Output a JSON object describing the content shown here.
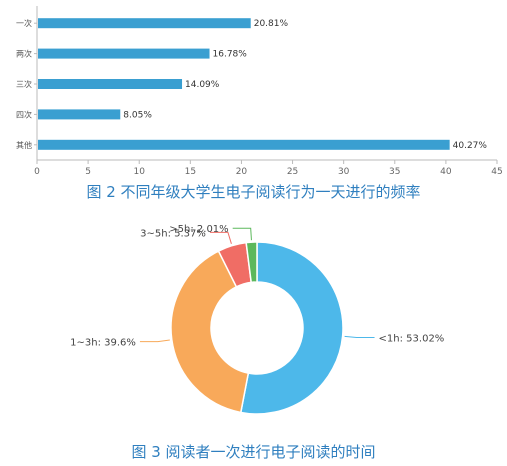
{
  "chart_data": [
    {
      "type": "bar",
      "orientation": "horizontal",
      "title": "图 2 不同年级大学生电子阅读行为一天进行的频率",
      "categories": [
        "一次",
        "两次",
        "三次",
        "四次",
        "其他"
      ],
      "values": [
        20.81,
        16.78,
        14.09,
        8.05,
        40.27
      ],
      "value_labels": [
        "20.81%",
        "16.78%",
        "14.09%",
        "8.05%",
        "40.27%"
      ],
      "xlim": [
        0,
        45
      ],
      "x_ticks": [
        "0",
        "5",
        "10",
        "15",
        "20",
        "25",
        "30",
        "35",
        "40",
        "45"
      ],
      "xlabel": "",
      "ylabel": "",
      "grid": false,
      "bar_color": "#3a9fd1"
    },
    {
      "type": "pie",
      "donut": true,
      "title": "图 3 阅读者一次进行电子阅读的时间",
      "slices": [
        {
          "label": "<1h: 53.02%",
          "value": 53.02,
          "color": "#4db8ea"
        },
        {
          "label": "1~3h: 39.6%",
          "value": 39.6,
          "color": "#f8a95a"
        },
        {
          "label": "3~5h: 5.37%",
          "value": 5.37,
          "color": "#f06d65"
        },
        {
          "label": ">5h: 2.01%",
          "value": 2.01,
          "color": "#5cb85c"
        }
      ]
    }
  ]
}
